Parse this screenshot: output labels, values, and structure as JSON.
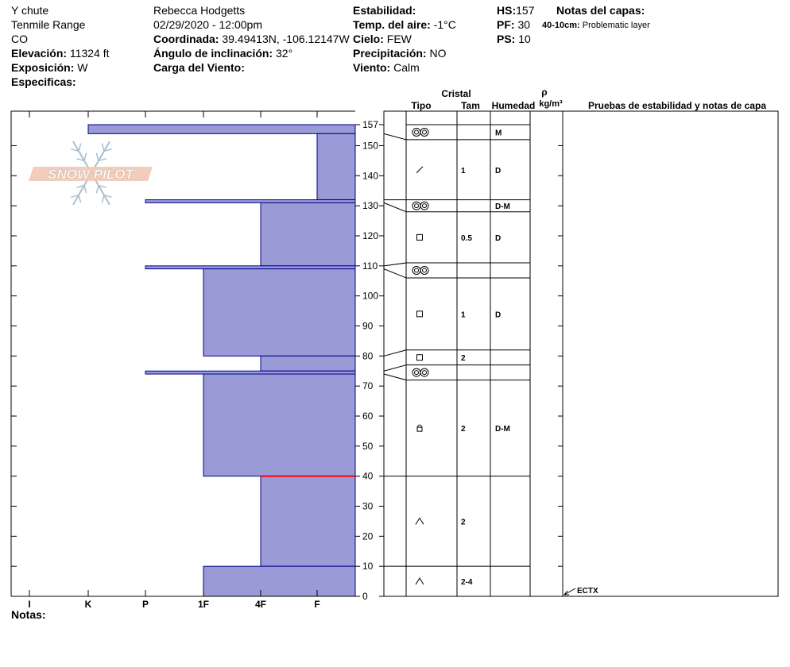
{
  "header": {
    "col1": {
      "location": "Y chute",
      "range": "Tenmile Range",
      "state": "CO",
      "elevation_label": "Elevación:",
      "elevation_value": "11324 ft",
      "aspect_label": "Exposición:",
      "aspect_value": "W",
      "specifics_label": "Especificas:"
    },
    "col2": {
      "observer": "Rebecca Hodgetts",
      "datetime": "02/29/2020 - 12:00pm",
      "coord_label": "Coordinada:",
      "coord_value": "39.49413N, -106.12147W",
      "slope_label": "Ángulo de inclinación:",
      "slope_value": "32°",
      "wind_load_label": "Carga del Viento:"
    },
    "col3": {
      "stability_label": "Estabilidad:",
      "air_temp_label": "Temp. del aire:",
      "air_temp_value": "-1°C",
      "sky_label": "Cielo:",
      "sky_value": "FEW",
      "precip_label": "Precipitación:",
      "precip_value": "NO",
      "wind_label": "Viento:",
      "wind_value": "Calm"
    },
    "col4": {
      "hs_label": "HS:",
      "hs_value": "157",
      "pf_label": "PF:",
      "pf_value": "30",
      "ps_label": "PS:",
      "ps_value": "10"
    },
    "col5": {
      "layer_notes_label": "Notas del capas:",
      "layer_note_range": "40-10cm:",
      "layer_note_text": "Problematic layer"
    }
  },
  "footer": {
    "notes_label": "Notas:"
  },
  "table_headers": {
    "crystal": "Cristal",
    "type": "Tipo",
    "size": "Tam",
    "moisture": "Humedad",
    "rho": "ρ",
    "density_unit": "kg/m³",
    "tests": "Pruebas de estabilidad y notas de capa"
  },
  "hardness_axis": [
    "I",
    "K",
    "P",
    "1F",
    "4F",
    "F"
  ],
  "depth_ticks": [
    0,
    10,
    20,
    30,
    40,
    50,
    60,
    70,
    80,
    90,
    100,
    110,
    120,
    130,
    140,
    150,
    157
  ],
  "watermark": "SNOW PILOT",
  "colors": {
    "fill": "#9a9ad6",
    "stroke": "#00008b",
    "weak": "#ff0000"
  },
  "chart_data": {
    "type": "snow_profile",
    "total_height_cm": 157,
    "hardness_scale": [
      "I",
      "K",
      "P",
      "1F",
      "4F",
      "F"
    ],
    "hardness_profile": [
      {
        "top": 157,
        "bottom": 154,
        "hardness": "K"
      },
      {
        "top": 154,
        "bottom": 132,
        "hardness": "F"
      },
      {
        "top": 132,
        "bottom": 131,
        "hardness": "P"
      },
      {
        "top": 131,
        "bottom": 110,
        "hardness": "4F"
      },
      {
        "top": 110,
        "bottom": 109,
        "hardness": "P"
      },
      {
        "top": 109,
        "bottom": 80,
        "hardness": "1F"
      },
      {
        "top": 80,
        "bottom": 75,
        "hardness": "4F"
      },
      {
        "top": 75,
        "bottom": 74,
        "hardness": "P"
      },
      {
        "top": 74,
        "bottom": 40,
        "hardness": "1F"
      },
      {
        "top": 40,
        "bottom": 10,
        "hardness": "4F"
      },
      {
        "top": 10,
        "bottom": 0,
        "hardness": "1F"
      }
    ],
    "weak_layer_cm": 40,
    "layers": [
      {
        "top": 157,
        "bottom": 152,
        "type": "melt-freeze",
        "size": "",
        "moisture": "M"
      },
      {
        "top": 152,
        "bottom": 132,
        "type": "decomposing",
        "size": "1",
        "moisture": "D"
      },
      {
        "top": 132,
        "bottom": 128,
        "type": "melt-freeze",
        "size": "",
        "moisture": "D-M"
      },
      {
        "top": 128,
        "bottom": 111,
        "type": "faceted",
        "size": "0.5",
        "moisture": "D"
      },
      {
        "top": 111,
        "bottom": 106,
        "type": "melt-freeze",
        "size": "",
        "moisture": ""
      },
      {
        "top": 106,
        "bottom": 82,
        "type": "faceted",
        "size": "1",
        "moisture": "D"
      },
      {
        "top": 82,
        "bottom": 77,
        "type": "faceted",
        "size": "2",
        "moisture": ""
      },
      {
        "top": 77,
        "bottom": 72,
        "type": "melt-freeze",
        "size": "",
        "moisture": ""
      },
      {
        "top": 72,
        "bottom": 40,
        "type": "rounding-faceted",
        "size": "2",
        "moisture": "D-M"
      },
      {
        "top": 40,
        "bottom": 10,
        "type": "depth-hoar",
        "size": "2",
        "moisture": ""
      },
      {
        "top": 10,
        "bottom": 0,
        "type": "depth-hoar",
        "size": "2-4",
        "moisture": ""
      }
    ],
    "tests": [
      {
        "depth": 0,
        "label": "ECTX"
      }
    ]
  }
}
